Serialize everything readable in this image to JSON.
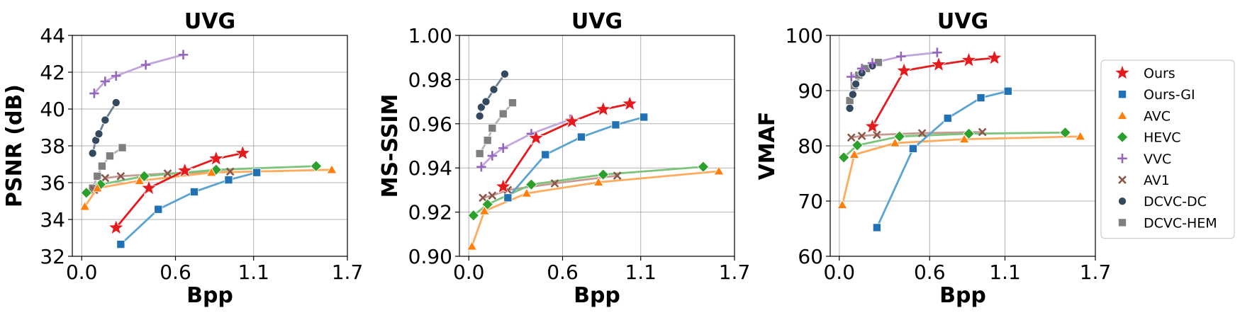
{
  "chart_data": [
    {
      "type": "line",
      "title": "UVG",
      "xlabel": "Bpp",
      "ylabel": "PSNR (dB)",
      "xlim": [
        -0.06,
        1.7
      ],
      "ylim": [
        32,
        44
      ],
      "xticks": [
        "0.0",
        "0.6",
        "1.1",
        "1.7"
      ],
      "xtick_values": [
        0.0,
        0.6,
        1.1,
        1.7
      ],
      "yticks": [
        "32",
        "34",
        "36",
        "38",
        "40",
        "42",
        "44"
      ],
      "ytick_values": [
        32,
        34,
        36,
        38,
        40,
        42,
        44
      ],
      "grid": true,
      "series": [
        {
          "name": "DCVC-HEM",
          "x": [
            0.07,
            0.1,
            0.13,
            0.18,
            0.26
          ],
          "y": [
            35.7,
            36.35,
            36.9,
            37.45,
            37.9
          ]
        },
        {
          "name": "DCVC-DC",
          "x": [
            0.07,
            0.09,
            0.11,
            0.15,
            0.22
          ],
          "y": [
            37.6,
            38.3,
            38.65,
            39.4,
            40.35
          ]
        },
        {
          "name": "VVC",
          "x": [
            0.08,
            0.15,
            0.22,
            0.41,
            0.65
          ],
          "y": [
            40.85,
            41.5,
            41.8,
            42.4,
            42.95
          ]
        },
        {
          "name": "AV1",
          "x": [
            0.08,
            0.15,
            0.25,
            0.55,
            0.95
          ],
          "y": [
            35.6,
            36.25,
            36.35,
            36.5,
            36.6
          ]
        },
        {
          "name": "HEVC",
          "x": [
            0.03,
            0.12,
            0.4,
            0.86,
            1.5
          ],
          "y": [
            35.45,
            35.9,
            36.35,
            36.7,
            36.9
          ]
        },
        {
          "name": "AVC",
          "x": [
            0.02,
            0.1,
            0.37,
            0.83,
            1.6
          ],
          "y": [
            34.7,
            35.7,
            36.1,
            36.55,
            36.7
          ]
        },
        {
          "name": "Ours-GI",
          "x": [
            0.25,
            0.49,
            0.72,
            0.94,
            1.12
          ],
          "y": [
            32.65,
            34.55,
            35.5,
            36.15,
            36.55
          ]
        },
        {
          "name": "Ours",
          "x": [
            0.22,
            0.43,
            0.66,
            0.86,
            1.03
          ],
          "y": [
            33.55,
            35.7,
            36.65,
            37.3,
            37.6
          ]
        }
      ]
    },
    {
      "type": "line",
      "title": "UVG",
      "xlabel": "Bpp",
      "ylabel": "MS-SSIM",
      "xlim": [
        -0.06,
        1.7
      ],
      "ylim": [
        0.9,
        1.0
      ],
      "xticks": [
        "0.0",
        "0.6",
        "1.1",
        "1.7"
      ],
      "xtick_values": [
        0.0,
        0.6,
        1.1,
        1.7
      ],
      "yticks": [
        "0.90",
        "0.92",
        "0.94",
        "0.96",
        "0.98",
        "1.00"
      ],
      "ytick_values": [
        0.9,
        0.92,
        0.94,
        0.96,
        0.98,
        1.0
      ],
      "grid": true,
      "series": [
        {
          "name": "DCVC-HEM",
          "x": [
            0.07,
            0.12,
            0.15,
            0.22,
            0.28
          ],
          "y": [
            0.9465,
            0.9525,
            0.958,
            0.9645,
            0.9695
          ]
        },
        {
          "name": "DCVC-DC",
          "x": [
            0.07,
            0.08,
            0.11,
            0.16,
            0.23
          ],
          "y": [
            0.9635,
            0.9675,
            0.97,
            0.9755,
            0.9825
          ]
        },
        {
          "name": "VVC",
          "x": [
            0.08,
            0.15,
            0.22,
            0.4,
            0.65
          ],
          "y": [
            0.9405,
            0.9455,
            0.949,
            0.9555,
            0.962
          ]
        },
        {
          "name": "AV1",
          "x": [
            0.09,
            0.15,
            0.25,
            0.55,
            0.95
          ],
          "y": [
            0.9265,
            0.9275,
            0.93,
            0.933,
            0.9365
          ]
        },
        {
          "name": "HEVC",
          "x": [
            0.03,
            0.12,
            0.4,
            0.86,
            1.5
          ],
          "y": [
            0.9185,
            0.9235,
            0.9325,
            0.937,
            0.9405
          ]
        },
        {
          "name": "AVC",
          "x": [
            0.02,
            0.1,
            0.37,
            0.83,
            1.6
          ],
          "y": [
            0.9045,
            0.9205,
            0.9285,
            0.9335,
            0.9385
          ]
        },
        {
          "name": "Ours-GI",
          "x": [
            0.25,
            0.49,
            0.72,
            0.94,
            1.12
          ],
          "y": [
            0.9265,
            0.946,
            0.954,
            0.9595,
            0.963
          ]
        },
        {
          "name": "Ours",
          "x": [
            0.22,
            0.43,
            0.66,
            0.86,
            1.03
          ],
          "y": [
            0.9315,
            0.9535,
            0.961,
            0.9665,
            0.969
          ]
        }
      ]
    },
    {
      "type": "line",
      "title": "UVG",
      "xlabel": "Bpp",
      "ylabel": "VMAF",
      "xlim": [
        -0.06,
        1.7
      ],
      "ylim": [
        60,
        100
      ],
      "xticks": [
        "0.0",
        "0.6",
        "1.1",
        "1.7"
      ],
      "xtick_values": [
        0.0,
        0.6,
        1.1,
        1.7
      ],
      "yticks": [
        "60",
        "70",
        "80",
        "90",
        "100"
      ],
      "ytick_values": [
        60,
        70,
        80,
        90,
        100
      ],
      "grid": true,
      "series": [
        {
          "name": "DCVC-HEM",
          "x": [
            0.07,
            0.1,
            0.13,
            0.18,
            0.26
          ],
          "y": [
            88.2,
            90.9,
            92.8,
            94.0,
            95.1
          ]
        },
        {
          "name": "DCVC-DC",
          "x": [
            0.07,
            0.09,
            0.11,
            0.15,
            0.22
          ],
          "y": [
            86.8,
            89.3,
            91.2,
            93.2,
            94.5
          ]
        },
        {
          "name": "VVC",
          "x": [
            0.08,
            0.15,
            0.22,
            0.41,
            0.65
          ],
          "y": [
            92.5,
            94.0,
            95.0,
            96.2,
            96.9
          ]
        },
        {
          "name": "AV1",
          "x": [
            0.08,
            0.15,
            0.25,
            0.55,
            0.95
          ],
          "y": [
            81.5,
            81.8,
            82.0,
            82.3,
            82.5
          ]
        },
        {
          "name": "HEVC",
          "x": [
            0.03,
            0.12,
            0.4,
            0.86,
            1.5
          ],
          "y": [
            77.9,
            80.1,
            81.7,
            82.2,
            82.4
          ]
        },
        {
          "name": "AVC",
          "x": [
            0.02,
            0.1,
            0.37,
            0.83,
            1.6
          ],
          "y": [
            69.3,
            78.4,
            80.5,
            81.2,
            81.7
          ]
        },
        {
          "name": "Ours-GI",
          "x": [
            0.25,
            0.49,
            0.72,
            0.94,
            1.12
          ],
          "y": [
            65.2,
            79.5,
            85.0,
            88.7,
            89.9
          ]
        },
        {
          "name": "Ours",
          "x": [
            0.22,
            0.43,
            0.66,
            0.86,
            1.03
          ],
          "y": [
            83.5,
            93.6,
            94.7,
            95.5,
            95.9
          ]
        }
      ]
    }
  ],
  "legend": {
    "position": "right",
    "items": [
      {
        "name": "Ours",
        "marker": "star",
        "color": "#e41a1c"
      },
      {
        "name": "Ours-GI",
        "marker": "square",
        "color": "#2171b5"
      },
      {
        "name": "AVC",
        "marker": "triangle",
        "color": "#ff7f0e"
      },
      {
        "name": "HEVC",
        "marker": "diamond",
        "color": "#2ca02c"
      },
      {
        "name": "VVC",
        "marker": "plus",
        "color": "#9467bd"
      },
      {
        "name": "AV1",
        "marker": "x",
        "color": "#8c564b"
      },
      {
        "name": "DCVC-DC",
        "marker": "circle",
        "color": "#34495e"
      },
      {
        "name": "DCVC-HEM",
        "marker": "square",
        "color": "#7f7f7f"
      }
    ]
  },
  "style": {
    "series": {
      "Ours": {
        "color": "#e41a1c",
        "line": "#e41a1c",
        "marker": "star"
      },
      "Ours-GI": {
        "color": "#2171b5",
        "line": "#5ba3d0",
        "marker": "square"
      },
      "AVC": {
        "color": "#ff7f0e",
        "line": "#ffab5e",
        "marker": "triangle"
      },
      "HEVC": {
        "color": "#2ca02c",
        "line": "#7cc47c",
        "marker": "diamond"
      },
      "VVC": {
        "color": "#9467bd",
        "line": "#c0a6dc",
        "marker": "plus"
      },
      "AV1": {
        "color": "#8c564b",
        "line": "#c49c94",
        "marker": "x"
      },
      "DCVC-DC": {
        "color": "#34495e",
        "line": "#6f8092",
        "marker": "circle"
      },
      "DCVC-HEM": {
        "color": "#7f7f7f",
        "line": "#b5b5b5",
        "marker": "square"
      }
    },
    "grid_color": "#b0b0b0",
    "axes_color": "#000000"
  }
}
